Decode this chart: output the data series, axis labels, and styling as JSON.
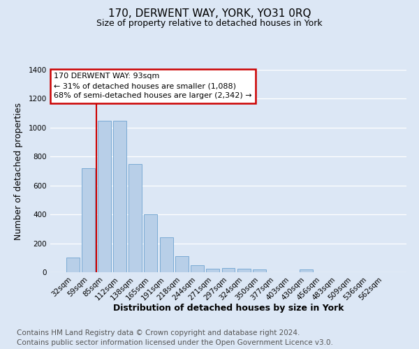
{
  "title": "170, DERWENT WAY, YORK, YO31 0RQ",
  "subtitle": "Size of property relative to detached houses in York",
  "xlabel": "Distribution of detached houses by size in York",
  "ylabel": "Number of detached properties",
  "footnote1": "Contains HM Land Registry data © Crown copyright and database right 2024.",
  "footnote2": "Contains public sector information licensed under the Open Government Licence v3.0.",
  "categories": [
    "32sqm",
    "59sqm",
    "85sqm",
    "112sqm",
    "138sqm",
    "165sqm",
    "191sqm",
    "218sqm",
    "244sqm",
    "271sqm",
    "297sqm",
    "324sqm",
    "350sqm",
    "377sqm",
    "403sqm",
    "430sqm",
    "456sqm",
    "483sqm",
    "509sqm",
    "536sqm",
    "562sqm"
  ],
  "values": [
    100,
    720,
    1050,
    1050,
    750,
    400,
    240,
    110,
    50,
    25,
    30,
    25,
    20,
    0,
    0,
    20,
    0,
    0,
    0,
    0,
    0
  ],
  "bar_color": "#b8cfe8",
  "bar_edge_color": "#7aaad4",
  "vline_x_index": 1.5,
  "vline_color": "#cc0000",
  "annotation_line1": "170 DERWENT WAY: 93sqm",
  "annotation_line2": "← 31% of detached houses are smaller (1,088)",
  "annotation_line3": "68% of semi-detached houses are larger (2,342) →",
  "annotation_box_color": "#ffffff",
  "annotation_border_color": "#cc0000",
  "ylim": [
    0,
    1400
  ],
  "yticks": [
    0,
    200,
    400,
    600,
    800,
    1000,
    1200,
    1400
  ],
  "bg_color": "#dce7f5",
  "plot_bg_color": "#dce7f5",
  "grid_color": "#ffffff",
  "title_fontsize": 11,
  "subtitle_fontsize": 9,
  "xlabel_fontsize": 9,
  "ylabel_fontsize": 9,
  "tick_fontsize": 7.5,
  "annotation_fontsize": 8,
  "footnote_fontsize": 7.5
}
